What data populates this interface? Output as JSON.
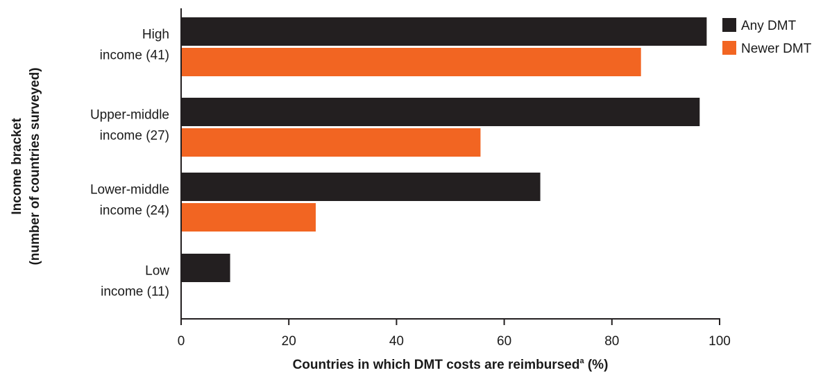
{
  "chart_data": {
    "type": "bar",
    "orientation": "horizontal",
    "categories": [
      [
        "High",
        "income (41)"
      ],
      [
        "Upper-middle",
        "income (27)"
      ],
      [
        "Lower-middle",
        "income (24)"
      ],
      [
        "Low",
        "income (11)"
      ]
    ],
    "series": [
      {
        "name": "Any DMT",
        "color": "#231f20",
        "values": [
          97.6,
          96.3,
          66.7,
          9.1
        ]
      },
      {
        "name": "Newer DMT",
        "color": "#f26522",
        "values": [
          85.4,
          55.6,
          25.0,
          null
        ]
      }
    ],
    "xlabel": "Countries in which DMT costs are reimbursed",
    "xlabel_superscript": "a",
    "xlabel_suffix": " (%)",
    "ylabel_lines": [
      "Income bracket",
      "(number of countries surveyed)"
    ],
    "xlim": [
      0,
      100
    ],
    "xticks": [
      0,
      20,
      40,
      60,
      80,
      100
    ],
    "grid": false,
    "legend_position": "top-right"
  }
}
